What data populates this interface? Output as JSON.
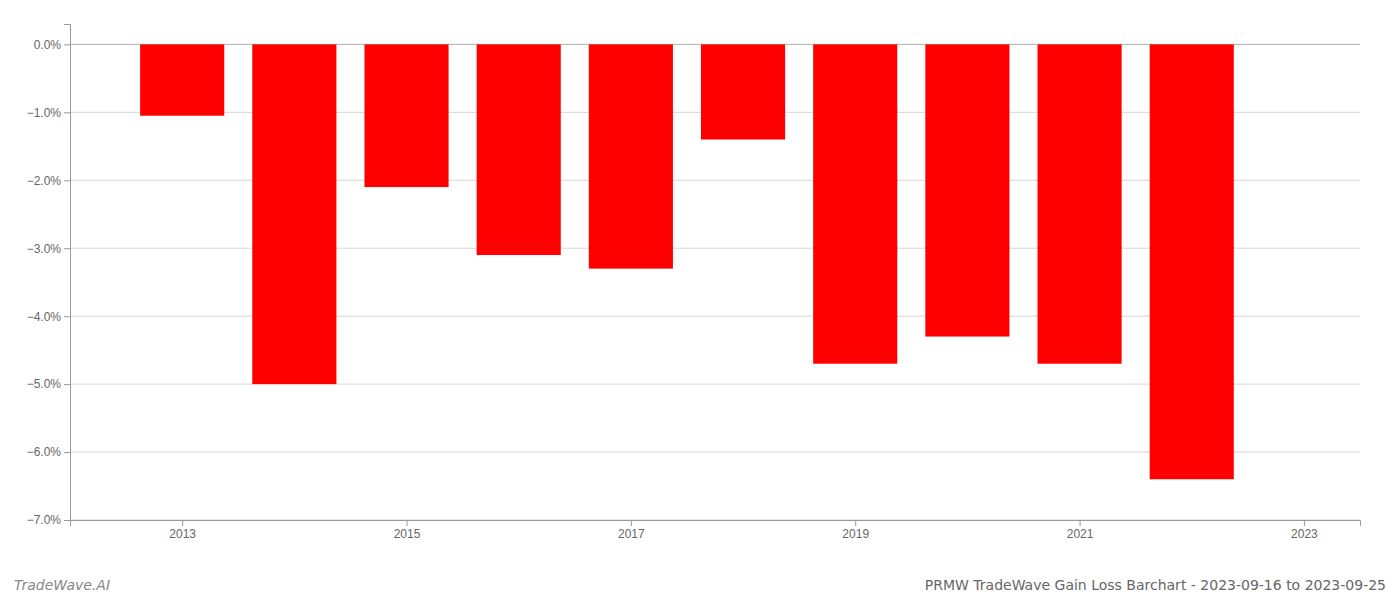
{
  "chart_data": {
    "type": "bar",
    "title": "PRMW TradeWave Gain Loss Barchart - 2023-09-16 to 2023-09-25",
    "annotations": [
      "TradeWave.AI"
    ],
    "x": [
      2013,
      2014,
      2015,
      2016,
      2017,
      2018,
      2019,
      2020,
      2021,
      2022
    ],
    "values": [
      -0.0105,
      -0.05,
      -0.021,
      -0.031,
      -0.033,
      -0.014,
      -0.047,
      -0.043,
      -0.047,
      -0.064
    ],
    "color": "#ff0000",
    "xlim": [
      2012,
      2023.5
    ],
    "xticks": [
      2013,
      2015,
      2017,
      2019,
      2021,
      2023
    ],
    "ylim": [
      -0.07,
      0.003
    ],
    "yticks": [
      {
        "value": -0.07,
        "label": "−7.0%"
      },
      {
        "value": -0.06,
        "label": "−6.0%"
      },
      {
        "value": -0.05,
        "label": "−5.0%"
      },
      {
        "value": -0.04,
        "label": "−4.0%"
      },
      {
        "value": -0.03,
        "label": "−3.0%"
      },
      {
        "value": -0.02,
        "label": "−2.0%"
      },
      {
        "value": -0.01,
        "label": "−1.0%"
      },
      {
        "value": 0,
        "label": "0.0%"
      }
    ],
    "grid": true
  }
}
